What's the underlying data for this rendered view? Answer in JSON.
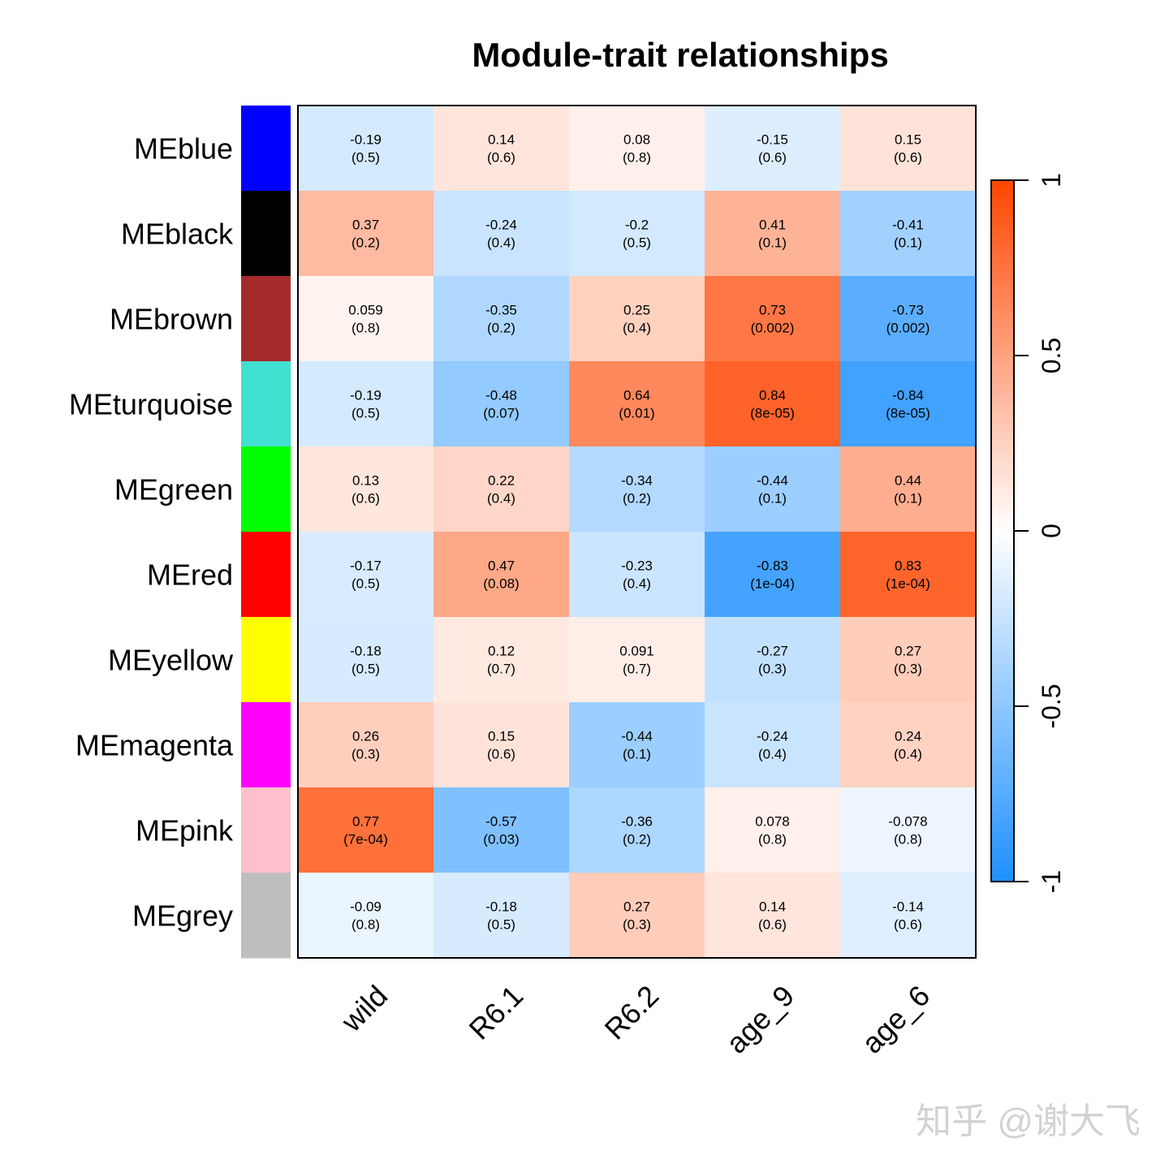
{
  "chart_data": {
    "type": "heatmap",
    "title": "Module-trait relationships",
    "rows": [
      "MEblue",
      "MEblack",
      "MEbrown",
      "MEturquoise",
      "MEgreen",
      "MEred",
      "MEyellow",
      "MEmagenta",
      "MEpink",
      "MEgrey"
    ],
    "row_colors": [
      "#0000ff",
      "#000000",
      "#a52a2a",
      "#40e0d0",
      "#00ff00",
      "#ff0000",
      "#ffff00",
      "#ff00ff",
      "#ffc0cb",
      "#bebebe"
    ],
    "columns": [
      "wild",
      "R6.1",
      "R6.2",
      "age_9",
      "age_6"
    ],
    "values": [
      [
        -0.19,
        0.14,
        0.08,
        -0.15,
        0.15
      ],
      [
        0.37,
        -0.24,
        -0.2,
        0.41,
        -0.41
      ],
      [
        0.059,
        -0.35,
        0.25,
        0.73,
        -0.73
      ],
      [
        -0.19,
        -0.48,
        0.64,
        0.84,
        -0.84
      ],
      [
        0.13,
        0.22,
        -0.34,
        -0.44,
        0.44
      ],
      [
        -0.17,
        0.47,
        -0.23,
        -0.83,
        0.83
      ],
      [
        -0.18,
        0.12,
        0.091,
        -0.27,
        0.27
      ],
      [
        0.26,
        0.15,
        -0.44,
        -0.24,
        0.24
      ],
      [
        0.77,
        -0.57,
        -0.36,
        0.078,
        -0.078
      ],
      [
        -0.09,
        -0.18,
        0.27,
        0.14,
        -0.14
      ]
    ],
    "value_labels": [
      [
        "-0.19",
        "0.14",
        "0.08",
        "-0.15",
        "0.15"
      ],
      [
        "0.37",
        "-0.24",
        "-0.2",
        "0.41",
        "-0.41"
      ],
      [
        "0.059",
        "-0.35",
        "0.25",
        "0.73",
        "-0.73"
      ],
      [
        "-0.19",
        "-0.48",
        "0.64",
        "0.84",
        "-0.84"
      ],
      [
        "0.13",
        "0.22",
        "-0.34",
        "-0.44",
        "0.44"
      ],
      [
        "-0.17",
        "0.47",
        "-0.23",
        "-0.83",
        "0.83"
      ],
      [
        "-0.18",
        "0.12",
        "0.091",
        "-0.27",
        "0.27"
      ],
      [
        "0.26",
        "0.15",
        "-0.44",
        "-0.24",
        "0.24"
      ],
      [
        "0.77",
        "-0.57",
        "-0.36",
        "0.078",
        "-0.078"
      ],
      [
        "-0.09",
        "-0.18",
        "0.27",
        "0.14",
        "-0.14"
      ]
    ],
    "p_values": [
      [
        "(0.5)",
        "(0.6)",
        "(0.8)",
        "(0.6)",
        "(0.6)"
      ],
      [
        "(0.2)",
        "(0.4)",
        "(0.5)",
        "(0.1)",
        "(0.1)"
      ],
      [
        "(0.8)",
        "(0.2)",
        "(0.4)",
        "(0.002)",
        "(0.002)"
      ],
      [
        "(0.5)",
        "(0.07)",
        "(0.01)",
        "(8e-05)",
        "(8e-05)"
      ],
      [
        "(0.6)",
        "(0.4)",
        "(0.2)",
        "(0.1)",
        "(0.1)"
      ],
      [
        "(0.5)",
        "(0.08)",
        "(0.4)",
        "(1e-04)",
        "(1e-04)"
      ],
      [
        "(0.5)",
        "(0.7)",
        "(0.7)",
        "(0.3)",
        "(0.3)"
      ],
      [
        "(0.3)",
        "(0.6)",
        "(0.1)",
        "(0.4)",
        "(0.4)"
      ],
      [
        "(7e-04)",
        "(0.03)",
        "(0.2)",
        "(0.8)",
        "(0.8)"
      ],
      [
        "(0.8)",
        "(0.5)",
        "(0.3)",
        "(0.6)",
        "(0.6)"
      ]
    ],
    "color_scale": {
      "min": -1,
      "max": 1,
      "low_color": "#1e90ff",
      "mid_color": "#ffffff",
      "high_color": "#ff4500",
      "ticks": [
        1,
        0.5,
        0,
        -0.5,
        -1
      ],
      "tick_labels": [
        "1",
        "0.5",
        "0",
        "-0.5",
        "-1"
      ]
    },
    "legend_placement": "right"
  },
  "watermark": "知乎 @谢大飞"
}
